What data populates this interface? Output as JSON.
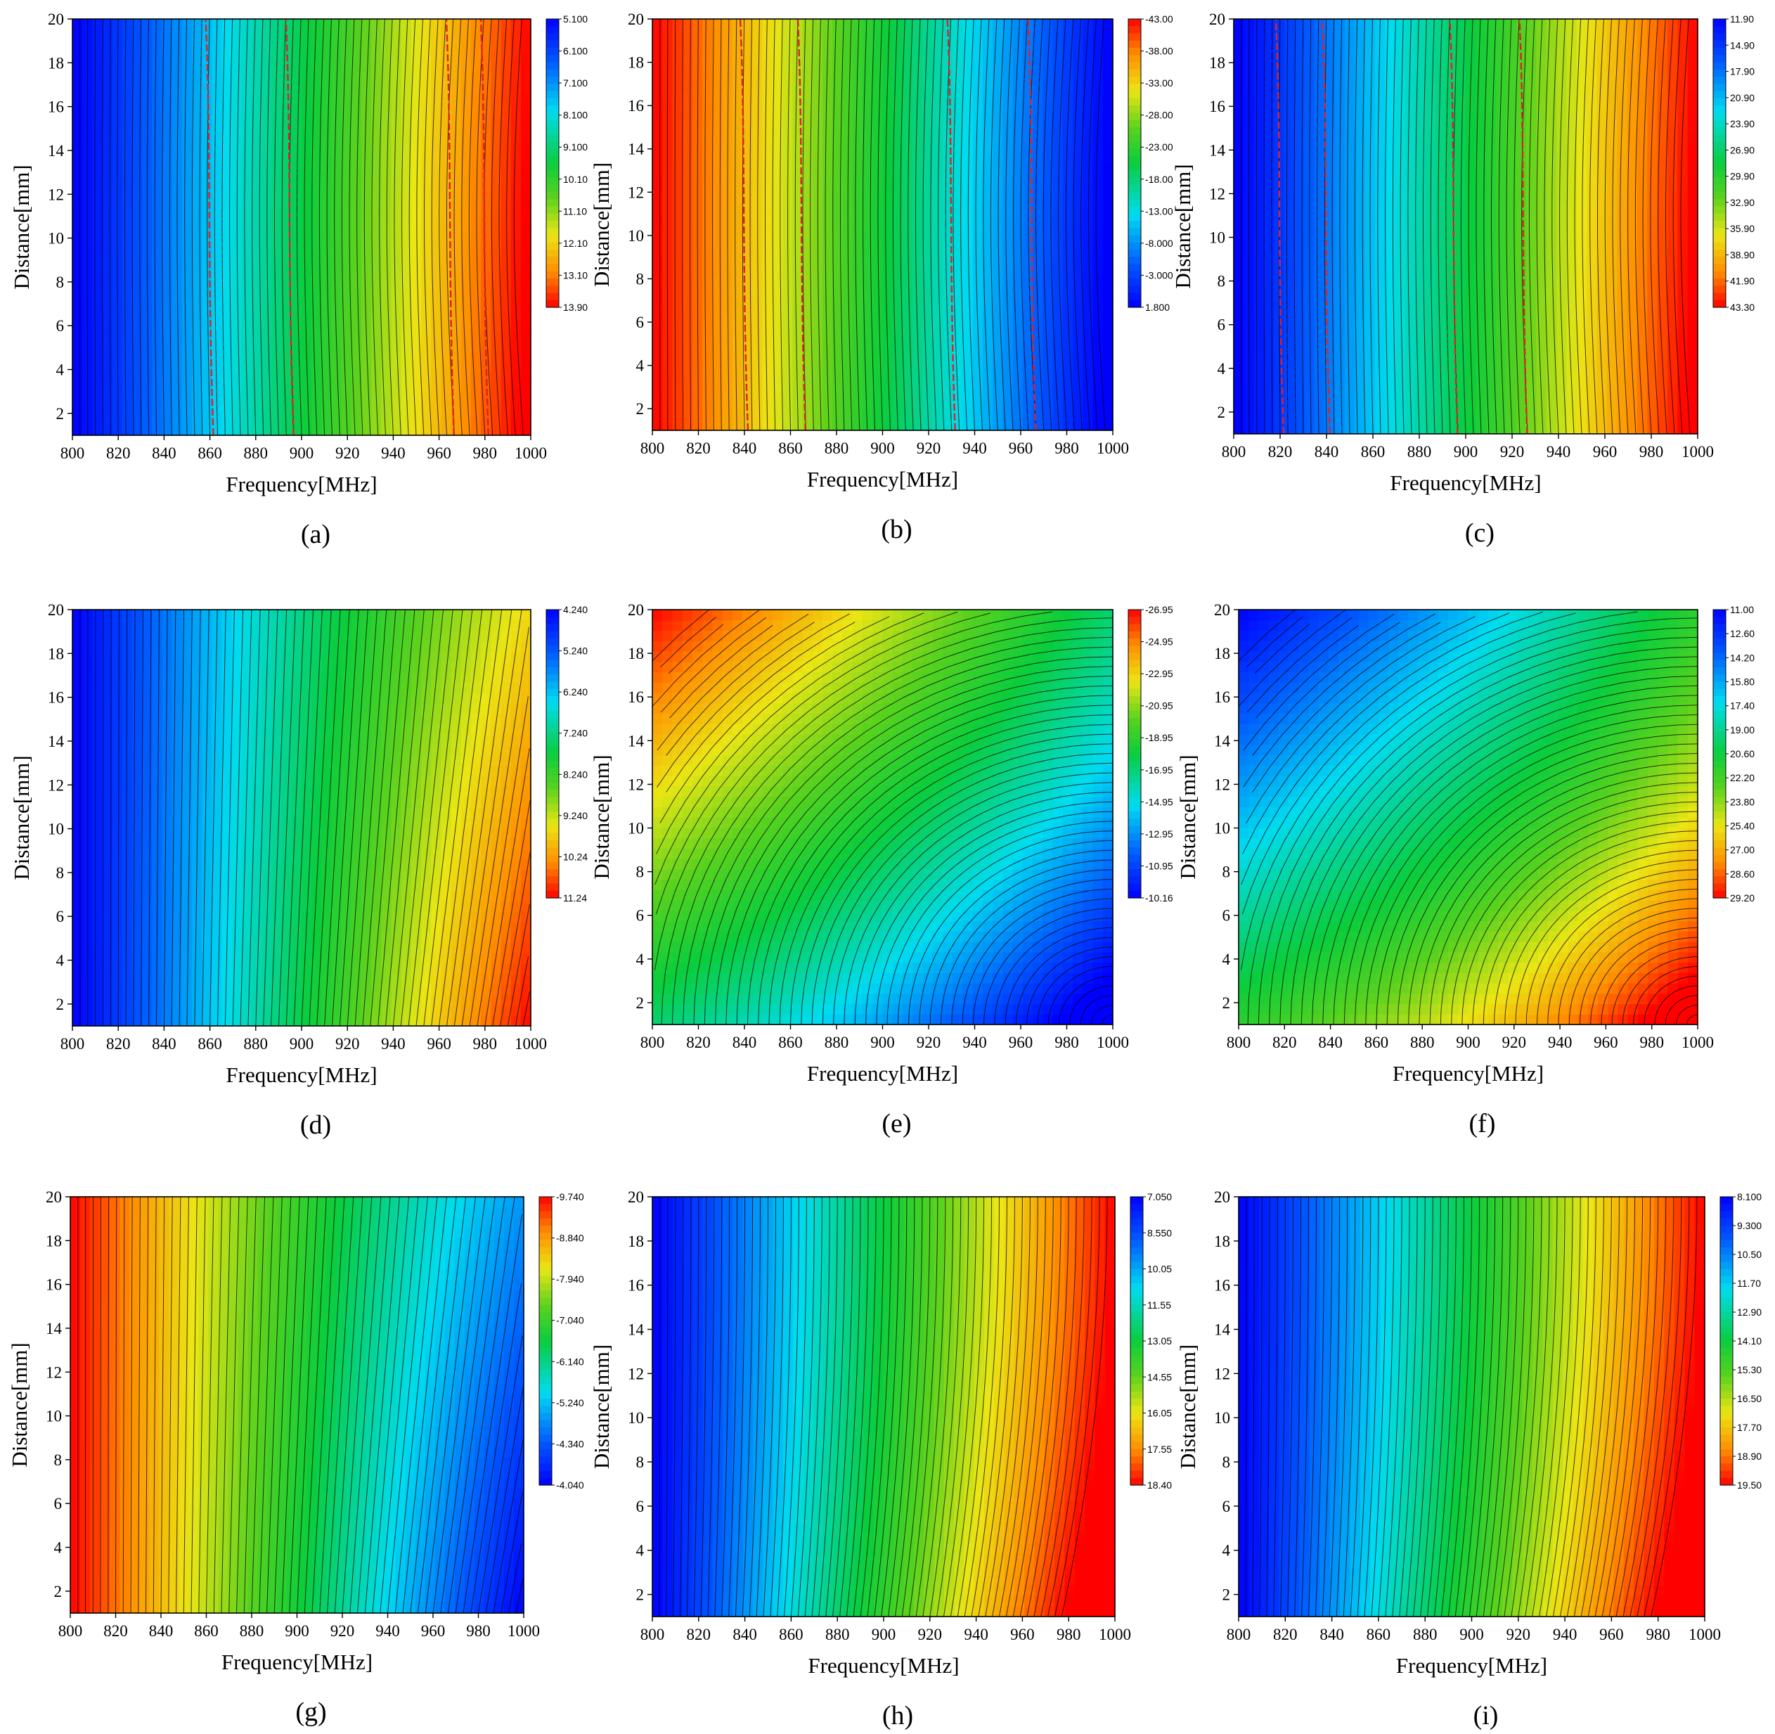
{
  "chart_data": [
    {
      "panel": "a",
      "type": "heatmap",
      "caption": "(a)",
      "xlabel": "Frequency[MHz]",
      "ylabel": "Distance[mm]",
      "xlim": [
        800,
        1000
      ],
      "ylim": [
        1,
        20
      ],
      "xticks": [
        800,
        820,
        840,
        860,
        880,
        900,
        920,
        940,
        960,
        980,
        1000
      ],
      "yticks": [
        2,
        4,
        6,
        8,
        10,
        12,
        14,
        16,
        18,
        20
      ],
      "colorbar": {
        "labels": [
          "5.100",
          "6.100",
          "7.100",
          "8.100",
          "9.100",
          "10.10",
          "11.10",
          "12.10",
          "13.10",
          "13.90"
        ],
        "min": 5.1,
        "max": 13.9,
        "low_color": "#0000ff",
        "high_color": "#ff0000"
      },
      "pattern": "vertical",
      "red_contours_at_frequency_mhz": [
        860,
        895,
        965,
        980
      ]
    },
    {
      "panel": "b",
      "type": "heatmap",
      "caption": "(b)",
      "xlabel": "Frequency[MHz]",
      "ylabel": "Distance[mm]",
      "xlim": [
        800,
        1000
      ],
      "ylim": [
        1,
        20
      ],
      "xticks": [
        800,
        820,
        840,
        860,
        880,
        900,
        920,
        940,
        960,
        980,
        1000
      ],
      "yticks": [
        2,
        4,
        6,
        8,
        10,
        12,
        14,
        16,
        18,
        20
      ],
      "colorbar": {
        "labels": [
          "-43.00",
          "-38.00",
          "-33.00",
          "-28.00",
          "-23.00",
          "-18.00",
          "-13.00",
          "-8.000",
          "-3.000",
          "1.800"
        ],
        "min": -43.0,
        "max": 1.8,
        "low_color": "#ff0000",
        "high_color": "#0000ff"
      },
      "pattern": "vertical",
      "red_contours_at_frequency_mhz": [
        840,
        865,
        930,
        965
      ]
    },
    {
      "panel": "c",
      "type": "heatmap",
      "caption": "(c)",
      "xlabel": "Frequency[MHz]",
      "ylabel": "Distance[mm]",
      "xlim": [
        800,
        1000
      ],
      "ylim": [
        1,
        20
      ],
      "xticks": [
        800,
        820,
        840,
        860,
        880,
        900,
        920,
        940,
        960,
        980,
        1000
      ],
      "yticks": [
        2,
        4,
        6,
        8,
        10,
        12,
        14,
        16,
        18,
        20
      ],
      "colorbar": {
        "labels": [
          "11.90",
          "14.90",
          "17.90",
          "20.90",
          "23.90",
          "26.90",
          "29.90",
          "32.90",
          "35.90",
          "38.90",
          "41.90",
          "43.30"
        ],
        "min": 11.9,
        "max": 43.3,
        "low_color": "#0000ff",
        "high_color": "#ff0000"
      },
      "pattern": "vertical",
      "red_contours_at_frequency_mhz": [
        820,
        840,
        895,
        925
      ]
    },
    {
      "panel": "d",
      "type": "heatmap",
      "caption": "(d)",
      "xlabel": "Frequency[MHz]",
      "ylabel": "Distance[mm]",
      "xlim": [
        800,
        1000
      ],
      "ylim": [
        1,
        20
      ],
      "xticks": [
        800,
        820,
        840,
        860,
        880,
        900,
        920,
        940,
        960,
        980,
        1000
      ],
      "yticks": [
        2,
        4,
        6,
        8,
        10,
        12,
        14,
        16,
        18,
        20
      ],
      "colorbar": {
        "labels": [
          "4.240",
          "5.240",
          "6.240",
          "7.240",
          "8.240",
          "9.240",
          "10.24",
          "11.24"
        ],
        "min": 4.24,
        "max": 11.24,
        "low_color": "#0000ff",
        "high_color": "#ff0000"
      },
      "pattern": "curved"
    },
    {
      "panel": "e",
      "type": "heatmap",
      "caption": "(e)",
      "xlabel": "Frequency[MHz]",
      "ylabel": "Distance[mm]",
      "xlim": [
        800,
        1000
      ],
      "ylim": [
        1,
        20
      ],
      "xticks": [
        800,
        820,
        840,
        860,
        880,
        900,
        920,
        940,
        960,
        980,
        1000
      ],
      "yticks": [
        2,
        4,
        6,
        8,
        10,
        12,
        14,
        16,
        18,
        20
      ],
      "colorbar": {
        "labels": [
          "-26.95",
          "-24.95",
          "-22.95",
          "-20.95",
          "-18.95",
          "-16.95",
          "-14.95",
          "-12.95",
          "-10.95",
          "-10.16"
        ],
        "min": -26.95,
        "max": -10.16,
        "low_color": "#ff0000",
        "high_color": "#0000ff"
      },
      "pattern": "corner"
    },
    {
      "panel": "f",
      "type": "heatmap",
      "caption": "(f)",
      "xlabel": "Frequency[MHz]",
      "ylabel": "Distance[mm]",
      "xlim": [
        800,
        1000
      ],
      "ylim": [
        1,
        20
      ],
      "xticks": [
        800,
        820,
        840,
        860,
        880,
        900,
        920,
        940,
        960,
        980,
        1000
      ],
      "yticks": [
        2,
        4,
        6,
        8,
        10,
        12,
        14,
        16,
        18,
        20
      ],
      "colorbar": {
        "labels": [
          "11.00",
          "12.60",
          "14.20",
          "15.80",
          "17.40",
          "19.00",
          "20.60",
          "22.20",
          "23.80",
          "25.40",
          "27.00",
          "28.60",
          "29.20"
        ],
        "min": 11.0,
        "max": 29.2,
        "low_color": "#0000ff",
        "high_color": "#ff0000"
      },
      "pattern": "corner"
    },
    {
      "panel": "g",
      "type": "heatmap",
      "caption": "(g)",
      "xlabel": "Frequency[MHz]",
      "ylabel": "Distance[mm]",
      "xlim": [
        800,
        1000
      ],
      "ylim": [
        1,
        20
      ],
      "xticks": [
        800,
        820,
        840,
        860,
        880,
        900,
        920,
        940,
        960,
        980,
        1000
      ],
      "yticks": [
        2,
        4,
        6,
        8,
        10,
        12,
        14,
        16,
        18,
        20
      ],
      "colorbar": {
        "labels": [
          "-9.740",
          "-8.840",
          "-7.940",
          "-7.040",
          "-6.140",
          "-5.240",
          "-4.340",
          "-4.040"
        ],
        "min": -9.74,
        "max": -4.04,
        "low_color": "#ff0000",
        "high_color": "#0000ff"
      },
      "pattern": "curved"
    },
    {
      "panel": "h",
      "type": "heatmap",
      "caption": "(h)",
      "xlabel": "Frequency[MHz]",
      "ylabel": "Distance[mm]",
      "xlim": [
        800,
        1000
      ],
      "ylim": [
        1,
        20
      ],
      "xticks": [
        800,
        820,
        840,
        860,
        880,
        900,
        920,
        940,
        960,
        980,
        1000
      ],
      "yticks": [
        2,
        4,
        6,
        8,
        10,
        12,
        14,
        16,
        18,
        20
      ],
      "colorbar": {
        "labels": [
          "7.050",
          "8.550",
          "10.05",
          "11.55",
          "13.05",
          "14.55",
          "16.05",
          "17.55",
          "18.40"
        ],
        "min": 7.05,
        "max": 18.4,
        "low_color": "#0000ff",
        "high_color": "#ff0000"
      },
      "pattern": "sweep"
    },
    {
      "panel": "i",
      "type": "heatmap",
      "caption": "(i)",
      "xlabel": "Frequency[MHz]",
      "ylabel": "Distance[mm]",
      "xlim": [
        800,
        1000
      ],
      "ylim": [
        1,
        20
      ],
      "xticks": [
        800,
        820,
        840,
        860,
        880,
        900,
        920,
        940,
        960,
        980,
        1000
      ],
      "yticks": [
        2,
        4,
        6,
        8,
        10,
        12,
        14,
        16,
        18,
        20
      ],
      "colorbar": {
        "labels": [
          "8.100",
          "9.300",
          "10.50",
          "11.70",
          "12.90",
          "14.10",
          "15.30",
          "16.50",
          "17.70",
          "18.90",
          "19.50"
        ],
        "min": 8.1,
        "max": 19.5,
        "low_color": "#0000ff",
        "high_color": "#ff0000"
      },
      "pattern": "sweep"
    }
  ]
}
